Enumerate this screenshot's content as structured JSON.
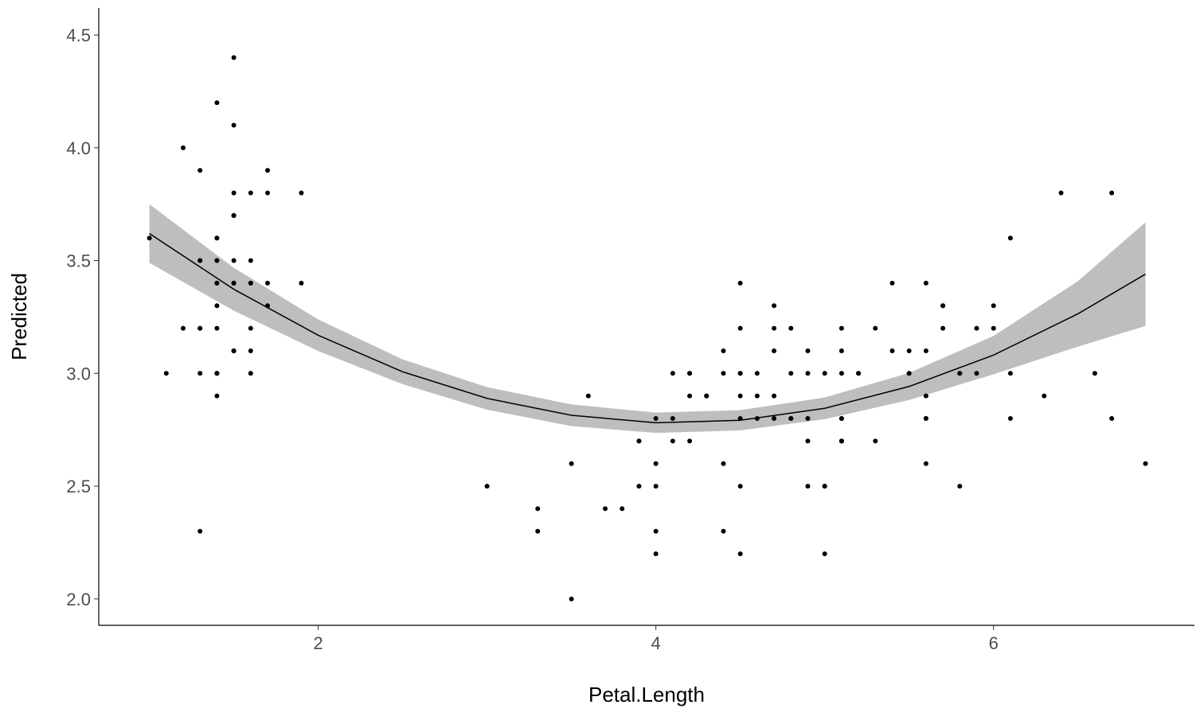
{
  "chart_data": {
    "type": "scatter",
    "title": "",
    "xlabel": "Petal.Length",
    "ylabel": "Predicted",
    "xlim": [
      0.7,
      7.19
    ],
    "ylim": [
      1.883,
      4.62
    ],
    "grid": false,
    "x_ticks": [
      2,
      4,
      6
    ],
    "x_tick_labels": [
      "2",
      "4",
      "6"
    ],
    "y_ticks": [
      2.0,
      2.5,
      3.0,
      3.5,
      4.0,
      4.5
    ],
    "y_tick_labels": [
      "2.0",
      "2.5",
      "3.0",
      "3.5",
      "4.0",
      "4.5"
    ],
    "point_color": "#000000",
    "line_color": "#000000",
    "band_color": "#bebebe",
    "points": [
      [
        1.4,
        3.5
      ],
      [
        1.4,
        3.0
      ],
      [
        1.3,
        3.2
      ],
      [
        1.5,
        3.1
      ],
      [
        1.4,
        3.6
      ],
      [
        1.7,
        3.9
      ],
      [
        1.4,
        3.4
      ],
      [
        1.5,
        3.4
      ],
      [
        1.4,
        2.9
      ],
      [
        1.5,
        3.1
      ],
      [
        1.5,
        3.7
      ],
      [
        1.6,
        3.4
      ],
      [
        1.4,
        3.0
      ],
      [
        1.1,
        3.0
      ],
      [
        1.2,
        4.0
      ],
      [
        1.5,
        4.4
      ],
      [
        1.3,
        3.9
      ],
      [
        1.4,
        3.5
      ],
      [
        1.7,
        3.8
      ],
      [
        1.5,
        3.8
      ],
      [
        1.7,
        3.4
      ],
      [
        1.5,
        3.7
      ],
      [
        1.0,
        3.6
      ],
      [
        1.7,
        3.3
      ],
      [
        1.9,
        3.4
      ],
      [
        1.6,
        3.0
      ],
      [
        1.6,
        3.4
      ],
      [
        1.5,
        3.5
      ],
      [
        1.4,
        3.4
      ],
      [
        1.6,
        3.2
      ],
      [
        1.6,
        3.1
      ],
      [
        1.5,
        3.4
      ],
      [
        1.5,
        4.1
      ],
      [
        1.4,
        4.2
      ],
      [
        1.5,
        3.1
      ],
      [
        1.2,
        3.2
      ],
      [
        1.3,
        3.5
      ],
      [
        1.4,
        3.6
      ],
      [
        1.3,
        3.0
      ],
      [
        1.5,
        3.4
      ],
      [
        1.3,
        3.5
      ],
      [
        1.3,
        2.3
      ],
      [
        1.3,
        3.2
      ],
      [
        1.6,
        3.5
      ],
      [
        1.9,
        3.8
      ],
      [
        1.4,
        3.0
      ],
      [
        1.6,
        3.8
      ],
      [
        1.4,
        3.2
      ],
      [
        1.5,
        3.7
      ],
      [
        1.4,
        3.3
      ],
      [
        4.7,
        3.2
      ],
      [
        4.5,
        3.2
      ],
      [
        4.9,
        3.1
      ],
      [
        4.0,
        2.3
      ],
      [
        4.6,
        2.8
      ],
      [
        4.5,
        2.8
      ],
      [
        4.7,
        3.3
      ],
      [
        3.3,
        2.4
      ],
      [
        4.6,
        2.9
      ],
      [
        3.9,
        2.7
      ],
      [
        3.5,
        2.0
      ],
      [
        4.2,
        3.0
      ],
      [
        4.0,
        2.2
      ],
      [
        4.7,
        2.9
      ],
      [
        3.6,
        2.9
      ],
      [
        4.4,
        3.1
      ],
      [
        4.5,
        3.0
      ],
      [
        4.1,
        2.7
      ],
      [
        4.5,
        2.2
      ],
      [
        3.9,
        2.5
      ],
      [
        4.8,
        3.2
      ],
      [
        4.0,
        2.8
      ],
      [
        4.9,
        2.5
      ],
      [
        4.7,
        2.8
      ],
      [
        4.3,
        2.9
      ],
      [
        4.4,
        3.0
      ],
      [
        4.8,
        2.8
      ],
      [
        5.0,
        3.0
      ],
      [
        4.5,
        2.9
      ],
      [
        3.5,
        2.6
      ],
      [
        3.8,
        2.4
      ],
      [
        3.7,
        2.4
      ],
      [
        3.9,
        2.7
      ],
      [
        5.1,
        2.7
      ],
      [
        4.5,
        3.0
      ],
      [
        4.5,
        3.4
      ],
      [
        4.7,
        3.1
      ],
      [
        4.4,
        2.3
      ],
      [
        4.1,
        3.0
      ],
      [
        4.0,
        2.5
      ],
      [
        4.4,
        2.6
      ],
      [
        4.6,
        3.0
      ],
      [
        4.0,
        2.6
      ],
      [
        3.3,
        2.3
      ],
      [
        4.2,
        2.7
      ],
      [
        4.2,
        3.0
      ],
      [
        4.2,
        2.9
      ],
      [
        4.3,
        2.9
      ],
      [
        3.0,
        2.5
      ],
      [
        4.1,
        2.8
      ],
      [
        6.0,
        3.3
      ],
      [
        5.1,
        2.7
      ],
      [
        5.9,
        3.0
      ],
      [
        5.6,
        2.9
      ],
      [
        5.8,
        3.0
      ],
      [
        6.6,
        3.0
      ],
      [
        4.5,
        2.5
      ],
      [
        6.3,
        2.9
      ],
      [
        5.8,
        2.5
      ],
      [
        6.1,
        3.6
      ],
      [
        5.1,
        3.2
      ],
      [
        5.3,
        2.7
      ],
      [
        5.5,
        3.0
      ],
      [
        5.0,
        2.5
      ],
      [
        5.1,
        2.8
      ],
      [
        5.3,
        3.2
      ],
      [
        5.5,
        3.0
      ],
      [
        6.7,
        3.8
      ],
      [
        6.9,
        2.6
      ],
      [
        5.0,
        2.2
      ],
      [
        5.7,
        3.2
      ],
      [
        4.9,
        2.8
      ],
      [
        6.7,
        2.8
      ],
      [
        4.9,
        2.7
      ],
      [
        5.7,
        3.3
      ],
      [
        6.0,
        3.2
      ],
      [
        4.8,
        2.8
      ],
      [
        4.9,
        3.0
      ],
      [
        5.6,
        2.8
      ],
      [
        5.8,
        3.0
      ],
      [
        6.1,
        2.8
      ],
      [
        6.4,
        3.8
      ],
      [
        5.6,
        2.8
      ],
      [
        5.1,
        2.8
      ],
      [
        5.6,
        2.6
      ],
      [
        6.1,
        3.0
      ],
      [
        5.6,
        3.4
      ],
      [
        5.5,
        3.1
      ],
      [
        4.8,
        3.0
      ],
      [
        5.4,
        3.1
      ],
      [
        5.6,
        3.1
      ],
      [
        5.1,
        3.1
      ],
      [
        5.1,
        2.7
      ],
      [
        5.9,
        3.2
      ],
      [
        5.7,
        3.3
      ],
      [
        5.2,
        3.0
      ],
      [
        5.0,
        2.5
      ],
      [
        5.2,
        3.0
      ],
      [
        5.4,
        3.4
      ],
      [
        5.1,
        3.0
      ]
    ],
    "fit": {
      "x": [
        1.0,
        1.5,
        2.0,
        2.5,
        3.0,
        3.5,
        4.0,
        4.5,
        5.0,
        5.5,
        6.0,
        6.5,
        6.9
      ],
      "y": [
        3.62,
        3.373,
        3.169,
        3.007,
        2.889,
        2.814,
        2.781,
        2.792,
        2.845,
        2.942,
        3.081,
        3.264,
        3.44
      ],
      "lower": [
        3.49,
        3.278,
        3.099,
        2.952,
        2.839,
        2.766,
        2.736,
        2.747,
        2.797,
        2.882,
        2.996,
        3.119,
        3.21
      ],
      "upper": [
        3.75,
        3.468,
        3.239,
        3.062,
        2.939,
        2.862,
        2.826,
        2.837,
        2.893,
        3.002,
        3.166,
        3.409,
        3.67
      ]
    }
  }
}
